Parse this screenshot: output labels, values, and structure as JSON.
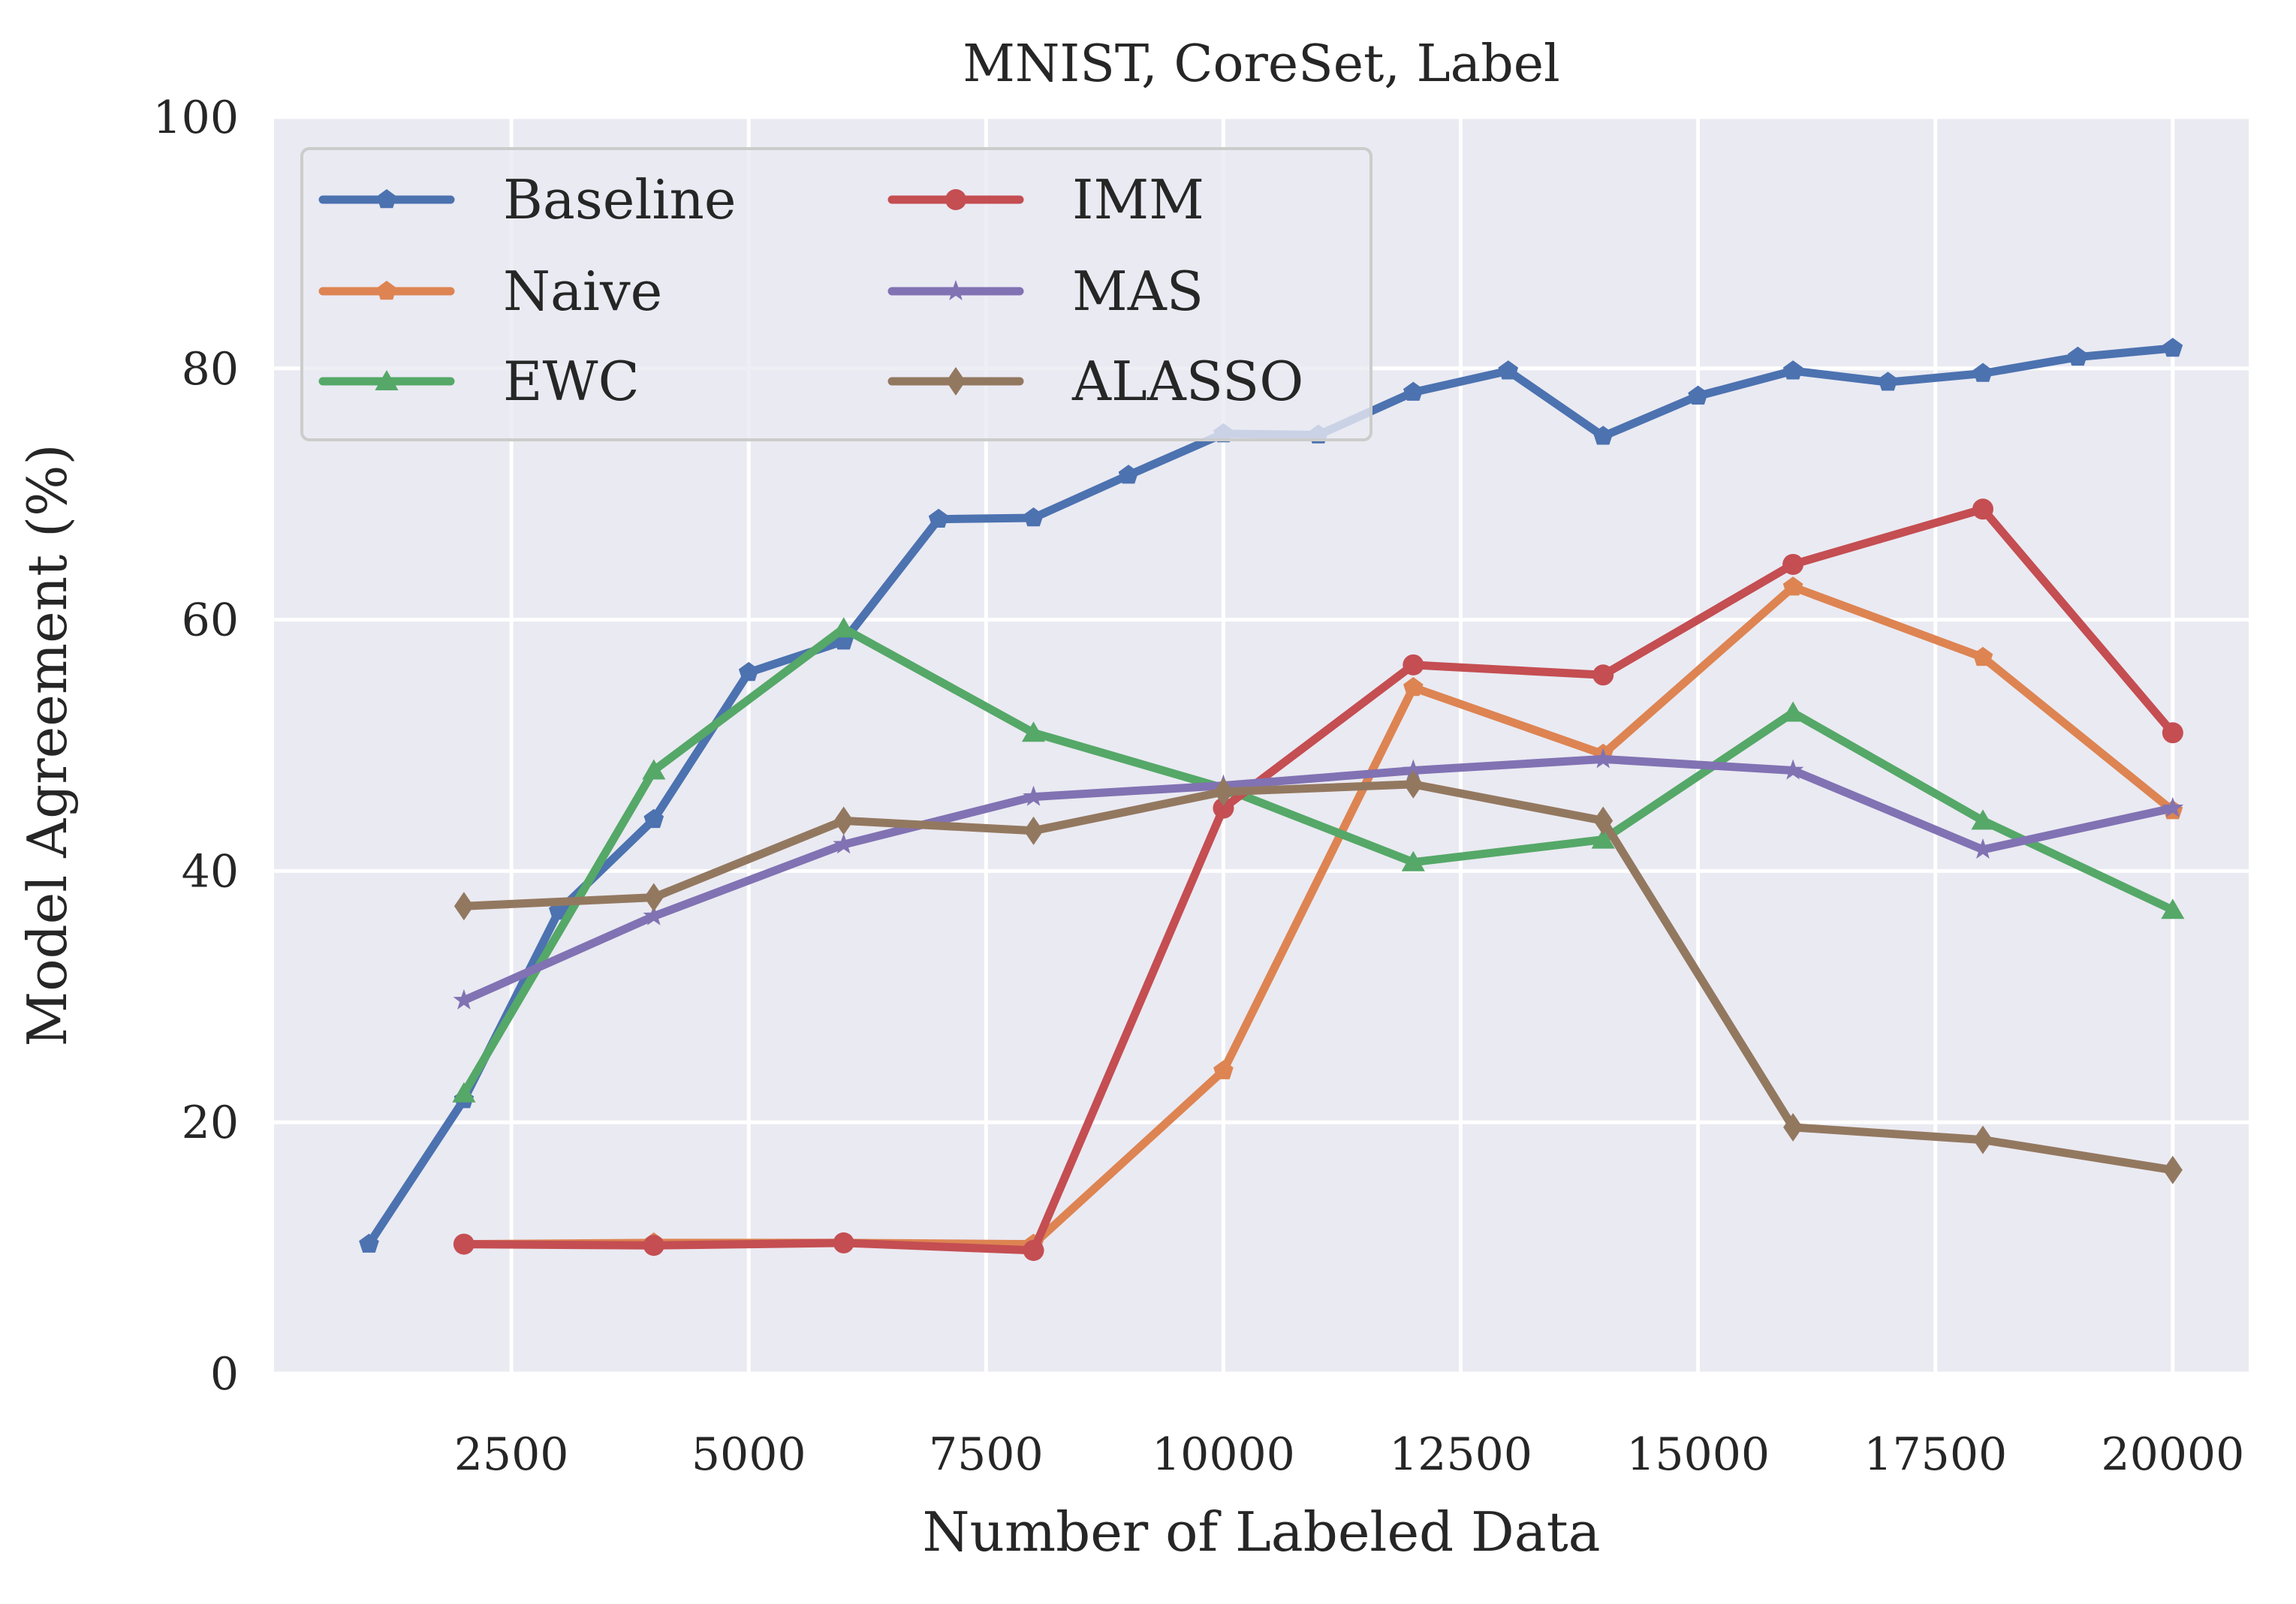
{
  "chart_data": {
    "type": "line",
    "title": "MNIST, CoreSet, Label",
    "xlabel": "Number of Labeled Data",
    "ylabel": "Model Agreement (%)",
    "xlim": [
      0,
      20800
    ],
    "ylim": [
      0,
      100
    ],
    "xticks": [
      2500,
      5000,
      7500,
      10000,
      12500,
      15000,
      17500,
      20000
    ],
    "yticks": [
      0,
      20,
      40,
      60,
      80,
      100
    ],
    "grid": true,
    "background": "#eaeaf2",
    "legend": {
      "placement": "top-left",
      "columns": 2
    },
    "series": [
      {
        "name": "Baseline",
        "color": "#4c72b0",
        "marker": "pentagon",
        "x": [
          1000,
          2000,
          3000,
          4000,
          5000,
          6000,
          7000,
          8000,
          9000,
          10000,
          11000,
          12000,
          13000,
          14000,
          15000,
          16000,
          17000,
          18000,
          19000,
          20000
        ],
        "y": [
          10.3,
          21.8,
          36.8,
          44.1,
          55.8,
          58.3,
          68.0,
          68.1,
          71.5,
          74.8,
          74.7,
          78.1,
          79.8,
          74.6,
          77.8,
          79.8,
          78.9,
          79.6,
          80.9,
          81.6
        ]
      },
      {
        "name": "Naive",
        "color": "#dd8452",
        "marker": "pentagon",
        "x": [
          2000,
          4000,
          6000,
          8000,
          10000,
          12000,
          14000,
          16000,
          18000,
          20000
        ],
        "y": [
          10.3,
          10.4,
          10.4,
          10.3,
          24.1,
          54.6,
          49.3,
          62.6,
          57.0,
          44.8
        ]
      },
      {
        "name": "EWC",
        "color": "#55a868",
        "marker": "triangle",
        "x": [
          2000,
          4000,
          6000,
          8000,
          10000,
          12000,
          14000,
          16000,
          18000,
          20000
        ],
        "y": [
          22.3,
          48.0,
          59.3,
          51.0,
          46.6,
          40.7,
          42.5,
          52.6,
          44.0,
          36.9
        ]
      },
      {
        "name": "IMM",
        "color": "#c44e52",
        "marker": "circle",
        "x": [
          2000,
          4000,
          6000,
          8000,
          10000,
          12000,
          14000,
          16000,
          18000,
          20000
        ],
        "y": [
          10.3,
          10.2,
          10.4,
          9.8,
          45.0,
          56.4,
          55.6,
          64.4,
          68.8,
          51.0
        ]
      },
      {
        "name": "MAS",
        "color": "#8172b3",
        "marker": "star",
        "x": [
          2000,
          4000,
          6000,
          8000,
          10000,
          12000,
          14000,
          16000,
          18000,
          20000
        ],
        "y": [
          29.7,
          36.4,
          42.1,
          45.9,
          46.8,
          48.0,
          48.9,
          48.0,
          41.7,
          45.0
        ]
      },
      {
        "name": "ALASSO",
        "color": "#937860",
        "marker": "diamond",
        "x": [
          2000,
          4000,
          6000,
          8000,
          10000,
          12000,
          14000,
          16000,
          18000,
          20000
        ],
        "y": [
          37.2,
          37.9,
          44.0,
          43.2,
          46.3,
          46.9,
          44.0,
          19.6,
          18.6,
          16.2
        ]
      }
    ]
  }
}
